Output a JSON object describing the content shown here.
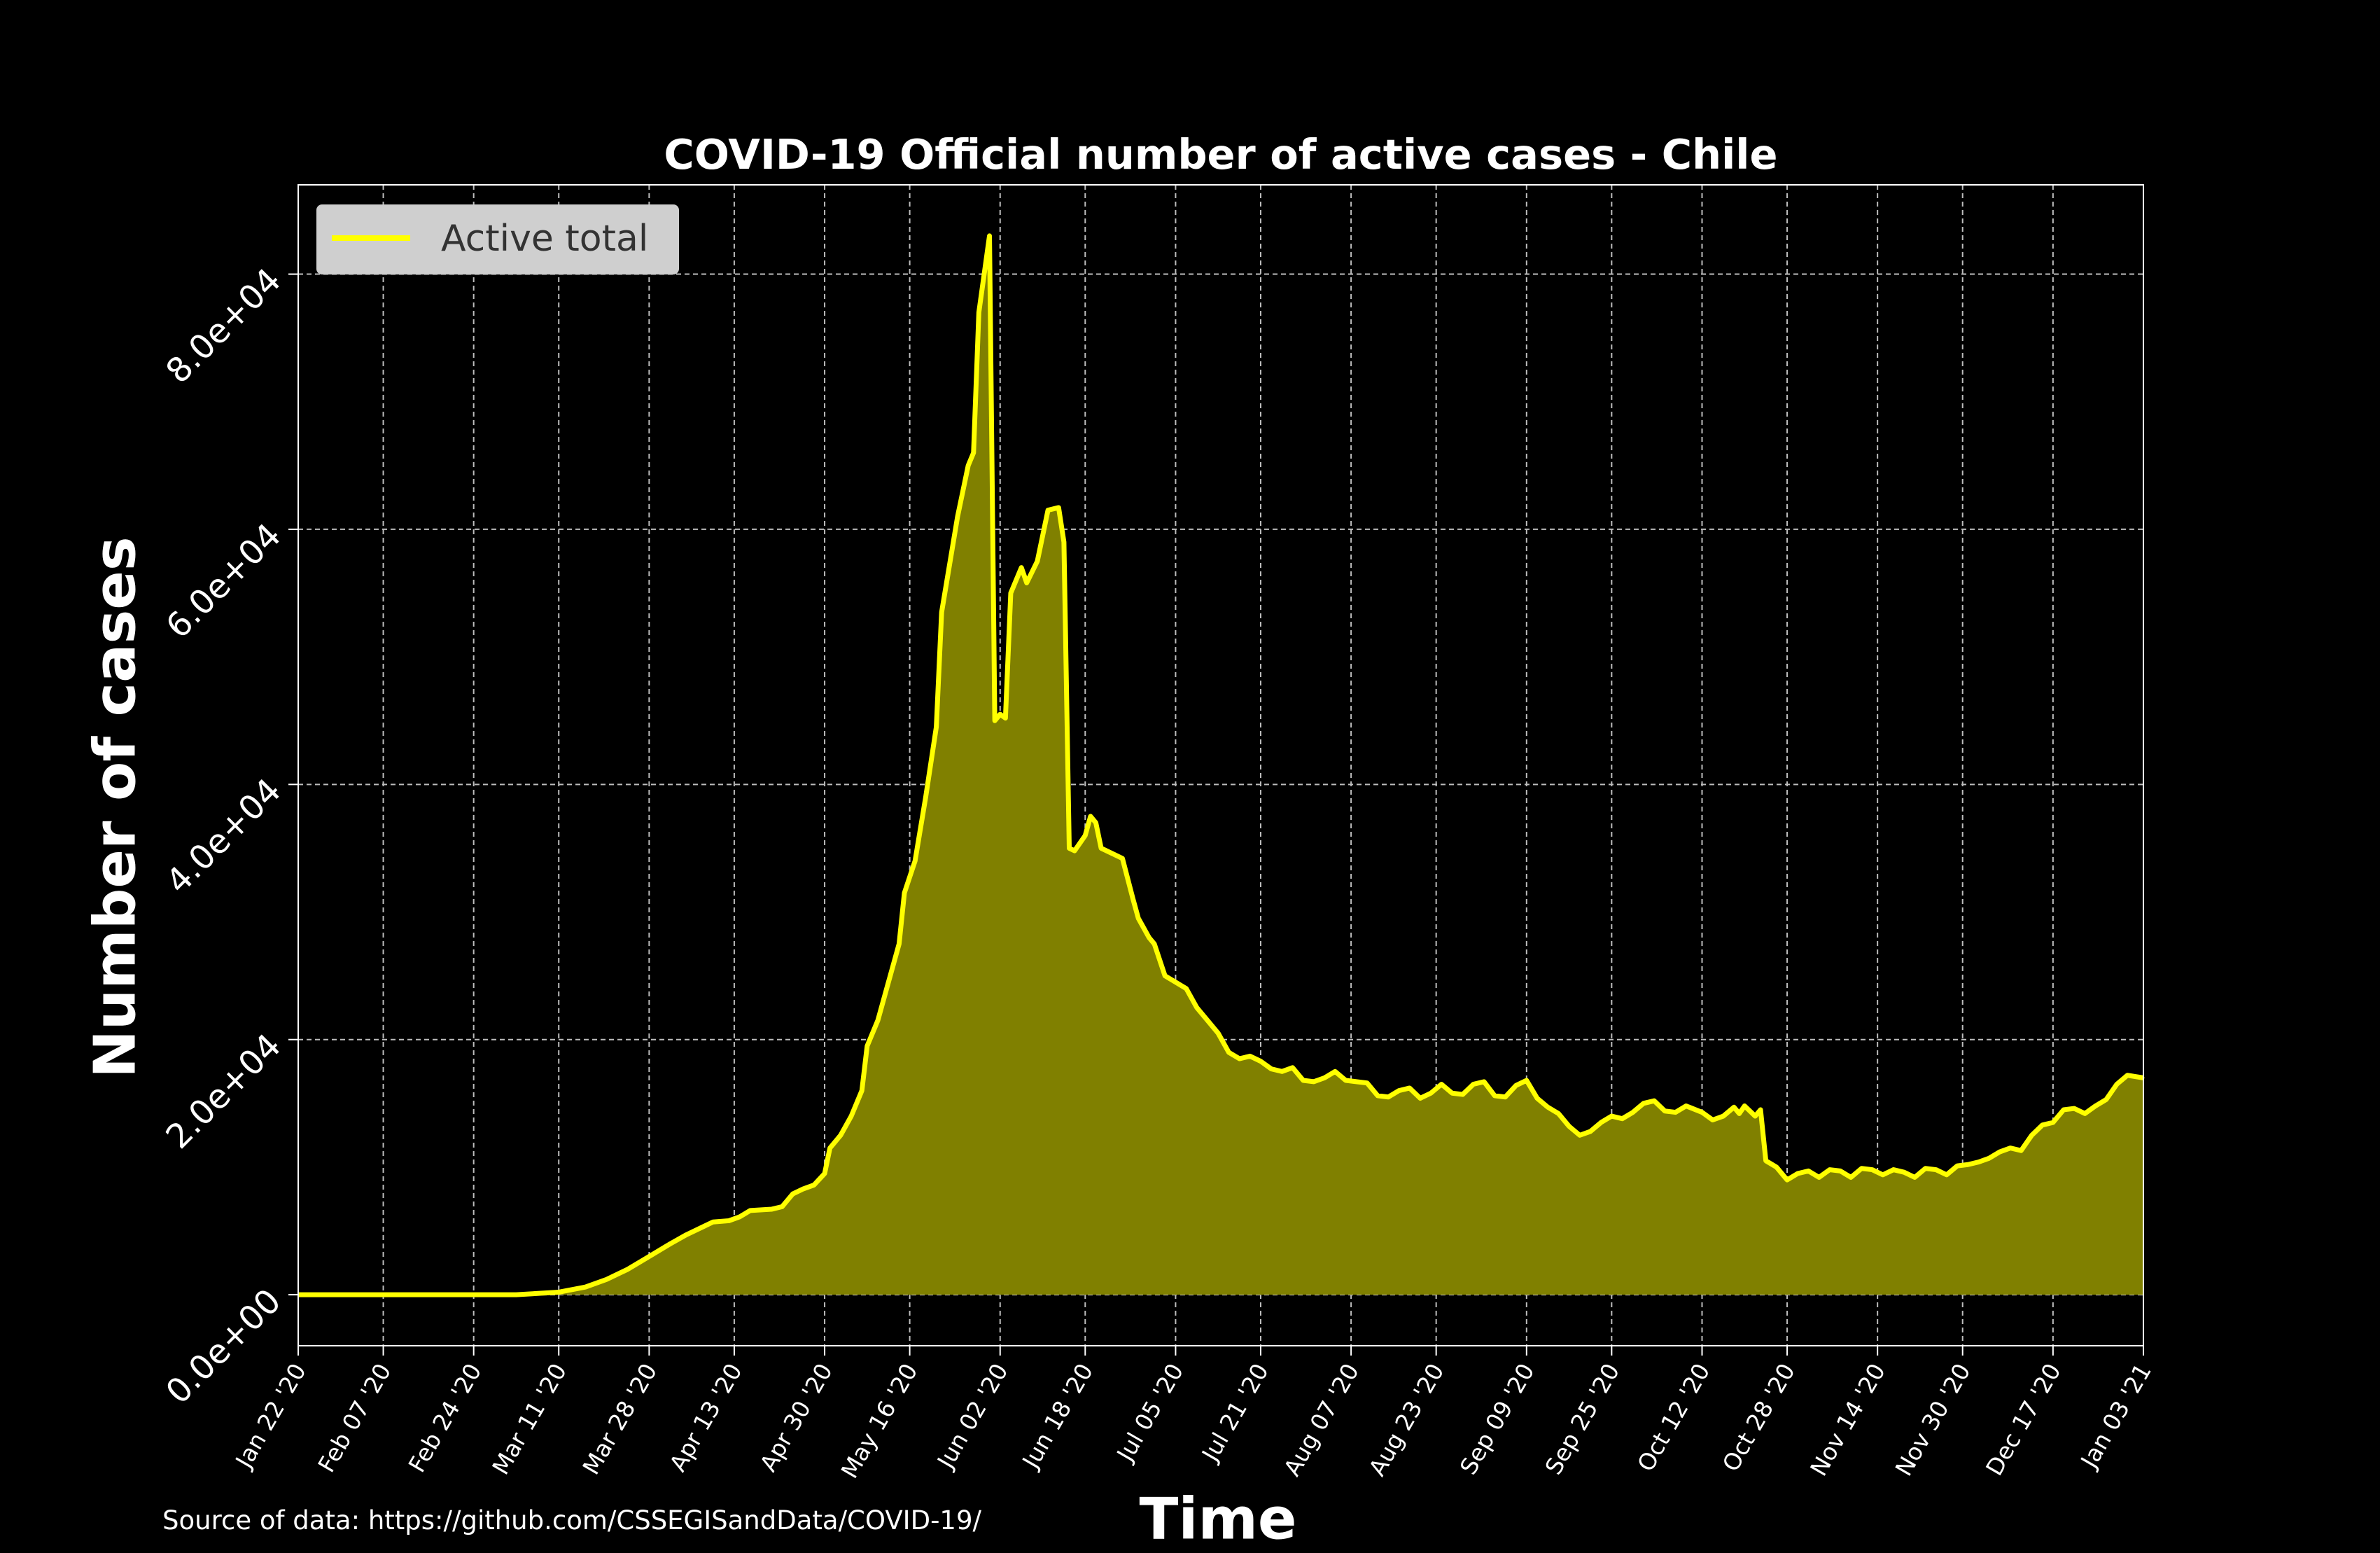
{
  "chart_data": {
    "type": "area",
    "title": "COVID-19 Official number of active cases - Chile",
    "xlabel": "Time",
    "ylabel": "Number of cases",
    "source": "Source of data: https://github.com/CSSEGISandData/COVID-19/",
    "legend": {
      "position": "top-left",
      "entries": [
        "Active total"
      ]
    },
    "grid": true,
    "x_start_date": "2020-01-22",
    "x_end_date": "2021-01-03",
    "ylim": [
      -4000,
      87000
    ],
    "xticks": [
      {
        "date": "2020-01-22",
        "label": "Jan 22 '20"
      },
      {
        "date": "2020-02-07",
        "label": "Feb 07 '20"
      },
      {
        "date": "2020-02-24",
        "label": "Feb 24 '20"
      },
      {
        "date": "2020-03-11",
        "label": "Mar 11 '20"
      },
      {
        "date": "2020-03-28",
        "label": "Mar 28 '20"
      },
      {
        "date": "2020-04-13",
        "label": "Apr 13 '20"
      },
      {
        "date": "2020-04-30",
        "label": "Apr 30 '20"
      },
      {
        "date": "2020-05-16",
        "label": "May 16 '20"
      },
      {
        "date": "2020-06-02",
        "label": "Jun 02 '20"
      },
      {
        "date": "2020-06-18",
        "label": "Jun 18 '20"
      },
      {
        "date": "2020-07-05",
        "label": "Jul 05 '20"
      },
      {
        "date": "2020-07-21",
        "label": "Jul 21 '20"
      },
      {
        "date": "2020-08-07",
        "label": "Aug 07 '20"
      },
      {
        "date": "2020-08-23",
        "label": "Aug 23 '20"
      },
      {
        "date": "2020-09-09",
        "label": "Sep 09 '20"
      },
      {
        "date": "2020-09-25",
        "label": "Sep 25 '20"
      },
      {
        "date": "2020-10-12",
        "label": "Oct 12 '20"
      },
      {
        "date": "2020-10-28",
        "label": "Oct 28 '20"
      },
      {
        "date": "2020-11-14",
        "label": "Nov 14 '20"
      },
      {
        "date": "2020-11-30",
        "label": "Nov 30 '20"
      },
      {
        "date": "2020-12-17",
        "label": "Dec 17 '20"
      },
      {
        "date": "2021-01-03",
        "label": "Jan 03 '21"
      }
    ],
    "yticks": [
      {
        "value": 0,
        "label": "0.0e+00"
      },
      {
        "value": 20000,
        "label": "2.0e+04"
      },
      {
        "value": 40000,
        "label": "4.0e+04"
      },
      {
        "value": 60000,
        "label": "6.0e+04"
      },
      {
        "value": 80000,
        "label": "8.0e+04"
      }
    ],
    "series": [
      {
        "name": "Active total",
        "color": "#ffff00",
        "fill_color": "#808000",
        "points": [
          [
            "2020-01-22",
            0
          ],
          [
            "2020-03-03",
            0
          ],
          [
            "2020-03-11",
            200
          ],
          [
            "2020-03-16",
            600
          ],
          [
            "2020-03-20",
            1200
          ],
          [
            "2020-03-24",
            2000
          ],
          [
            "2020-03-28",
            3000
          ],
          [
            "2020-04-01",
            4000
          ],
          [
            "2020-04-04",
            4700
          ],
          [
            "2020-04-07",
            5300
          ],
          [
            "2020-04-09",
            5700
          ],
          [
            "2020-04-12",
            5800
          ],
          [
            "2020-04-14",
            6100
          ],
          [
            "2020-04-16",
            6600
          ],
          [
            "2020-04-20",
            6700
          ],
          [
            "2020-04-22",
            6900
          ],
          [
            "2020-04-24",
            7900
          ],
          [
            "2020-04-26",
            8300
          ],
          [
            "2020-04-28",
            8600
          ],
          [
            "2020-04-30",
            9500
          ],
          [
            "2020-05-01",
            11500
          ],
          [
            "2020-05-03",
            12500
          ],
          [
            "2020-05-05",
            14000
          ],
          [
            "2020-05-07",
            16000
          ],
          [
            "2020-05-08",
            19500
          ],
          [
            "2020-05-10",
            21500
          ],
          [
            "2020-05-12",
            24500
          ],
          [
            "2020-05-14",
            27500
          ],
          [
            "2020-05-15",
            31500
          ],
          [
            "2020-05-17",
            34000
          ],
          [
            "2020-05-19",
            39000
          ],
          [
            "2020-05-21",
            44500
          ],
          [
            "2020-05-22",
            53500
          ],
          [
            "2020-05-24",
            58500
          ],
          [
            "2020-05-25",
            61000
          ],
          [
            "2020-05-27",
            65000
          ],
          [
            "2020-05-28",
            66000
          ],
          [
            "2020-05-29",
            77000
          ],
          [
            "2020-05-31",
            83000
          ],
          [
            "2020-06-01",
            45000
          ],
          [
            "2020-06-02",
            45500
          ],
          [
            "2020-06-03",
            45200
          ],
          [
            "2020-06-04",
            55000
          ],
          [
            "2020-06-06",
            57000
          ],
          [
            "2020-06-07",
            55800
          ],
          [
            "2020-06-09",
            57500
          ],
          [
            "2020-06-11",
            61500
          ],
          [
            "2020-06-13",
            61700
          ],
          [
            "2020-06-14",
            59000
          ],
          [
            "2020-06-15",
            35000
          ],
          [
            "2020-06-16",
            34800
          ],
          [
            "2020-06-18",
            36000
          ],
          [
            "2020-06-19",
            37500
          ],
          [
            "2020-06-20",
            37000
          ],
          [
            "2020-06-21",
            35000
          ],
          [
            "2020-06-23",
            34600
          ],
          [
            "2020-06-25",
            34200
          ],
          [
            "2020-06-27",
            31000
          ],
          [
            "2020-06-28",
            29500
          ],
          [
            "2020-06-30",
            28000
          ],
          [
            "2020-07-01",
            27500
          ],
          [
            "2020-07-03",
            25000
          ],
          [
            "2020-07-05",
            24500
          ],
          [
            "2020-07-07",
            24000
          ],
          [
            "2020-07-09",
            22500
          ],
          [
            "2020-07-11",
            21500
          ],
          [
            "2020-07-13",
            20500
          ],
          [
            "2020-07-15",
            19000
          ],
          [
            "2020-07-17",
            18500
          ],
          [
            "2020-07-19",
            18700
          ],
          [
            "2020-07-21",
            18300
          ],
          [
            "2020-07-23",
            17700
          ],
          [
            "2020-07-25",
            17500
          ],
          [
            "2020-07-27",
            17800
          ],
          [
            "2020-07-29",
            16800
          ],
          [
            "2020-07-31",
            16700
          ],
          [
            "2020-08-02",
            17000
          ],
          [
            "2020-08-04",
            17500
          ],
          [
            "2020-08-06",
            16800
          ],
          [
            "2020-08-08",
            16700
          ],
          [
            "2020-08-10",
            16600
          ],
          [
            "2020-08-12",
            15600
          ],
          [
            "2020-08-14",
            15500
          ],
          [
            "2020-08-16",
            16000
          ],
          [
            "2020-08-18",
            16200
          ],
          [
            "2020-08-20",
            15400
          ],
          [
            "2020-08-22",
            15800
          ],
          [
            "2020-08-24",
            16500
          ],
          [
            "2020-08-26",
            15800
          ],
          [
            "2020-08-28",
            15700
          ],
          [
            "2020-08-30",
            16500
          ],
          [
            "2020-09-01",
            16700
          ],
          [
            "2020-09-03",
            15600
          ],
          [
            "2020-09-05",
            15500
          ],
          [
            "2020-09-07",
            16400
          ],
          [
            "2020-09-09",
            16800
          ],
          [
            "2020-09-11",
            15400
          ],
          [
            "2020-09-13",
            14700
          ],
          [
            "2020-09-15",
            14200
          ],
          [
            "2020-09-17",
            13200
          ],
          [
            "2020-09-19",
            12500
          ],
          [
            "2020-09-21",
            12800
          ],
          [
            "2020-09-23",
            13500
          ],
          [
            "2020-09-25",
            14000
          ],
          [
            "2020-09-27",
            13800
          ],
          [
            "2020-09-29",
            14300
          ],
          [
            "2020-10-01",
            15000
          ],
          [
            "2020-10-03",
            15200
          ],
          [
            "2020-10-05",
            14400
          ],
          [
            "2020-10-07",
            14300
          ],
          [
            "2020-10-09",
            14800
          ],
          [
            "2020-10-12",
            14300
          ],
          [
            "2020-10-14",
            13700
          ],
          [
            "2020-10-16",
            14000
          ],
          [
            "2020-10-18",
            14700
          ],
          [
            "2020-10-19",
            14200
          ],
          [
            "2020-10-20",
            14800
          ],
          [
            "2020-10-22",
            14000
          ],
          [
            "2020-10-23",
            14500
          ],
          [
            "2020-10-24",
            10500
          ],
          [
            "2020-10-26",
            10000
          ],
          [
            "2020-10-28",
            9000
          ],
          [
            "2020-10-30",
            9500
          ],
          [
            "2020-11-01",
            9700
          ],
          [
            "2020-11-03",
            9200
          ],
          [
            "2020-11-05",
            9800
          ],
          [
            "2020-11-07",
            9700
          ],
          [
            "2020-11-09",
            9200
          ],
          [
            "2020-11-11",
            9900
          ],
          [
            "2020-11-13",
            9800
          ],
          [
            "2020-11-15",
            9400
          ],
          [
            "2020-11-17",
            9800
          ],
          [
            "2020-11-19",
            9600
          ],
          [
            "2020-11-21",
            9200
          ],
          [
            "2020-11-23",
            9900
          ],
          [
            "2020-11-25",
            9800
          ],
          [
            "2020-11-27",
            9400
          ],
          [
            "2020-11-29",
            10100
          ],
          [
            "2020-12-01",
            10200
          ],
          [
            "2020-12-03",
            10400
          ],
          [
            "2020-12-05",
            10700
          ],
          [
            "2020-12-07",
            11200
          ],
          [
            "2020-12-09",
            11500
          ],
          [
            "2020-12-11",
            11300
          ],
          [
            "2020-12-13",
            12500
          ],
          [
            "2020-12-15",
            13300
          ],
          [
            "2020-12-17",
            13500
          ],
          [
            "2020-12-19",
            14500
          ],
          [
            "2020-12-21",
            14600
          ],
          [
            "2020-12-23",
            14200
          ],
          [
            "2020-12-25",
            14800
          ],
          [
            "2020-12-27",
            15300
          ],
          [
            "2020-12-29",
            16500
          ],
          [
            "2020-12-31",
            17200
          ],
          [
            "2021-01-03",
            17000
          ]
        ]
      }
    ]
  }
}
